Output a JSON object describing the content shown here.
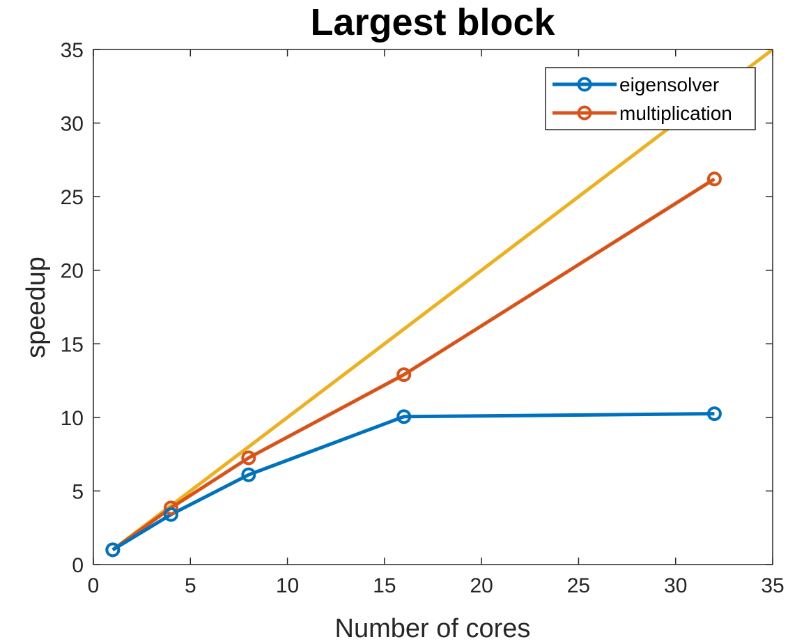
{
  "chart_data": {
    "type": "line",
    "title": "Largest block",
    "xlabel": "Number of cores",
    "ylabel": "speedup",
    "xlim": [
      0,
      35
    ],
    "ylim": [
      0,
      35
    ],
    "xticks": [
      0,
      5,
      10,
      15,
      20,
      25,
      30,
      35
    ],
    "yticks": [
      0,
      5,
      10,
      15,
      20,
      25,
      30,
      35
    ],
    "grid": false,
    "legend_position": "top-right",
    "series": [
      {
        "name": "eigensolver",
        "color": "#0072BD",
        "marker": "circle",
        "x": [
          1,
          4,
          8,
          16,
          32
        ],
        "y": [
          1.0,
          3.4,
          6.1,
          10.05,
          10.25
        ]
      },
      {
        "name": "multiplication",
        "color": "#D95319",
        "marker": "circle",
        "x": [
          1,
          4,
          8,
          16,
          32
        ],
        "y": [
          1.0,
          3.85,
          7.25,
          12.9,
          26.2
        ]
      },
      {
        "color": "#EDB120",
        "marker": "none",
        "x": [
          1,
          35
        ],
        "y": [
          1,
          35
        ]
      }
    ]
  }
}
